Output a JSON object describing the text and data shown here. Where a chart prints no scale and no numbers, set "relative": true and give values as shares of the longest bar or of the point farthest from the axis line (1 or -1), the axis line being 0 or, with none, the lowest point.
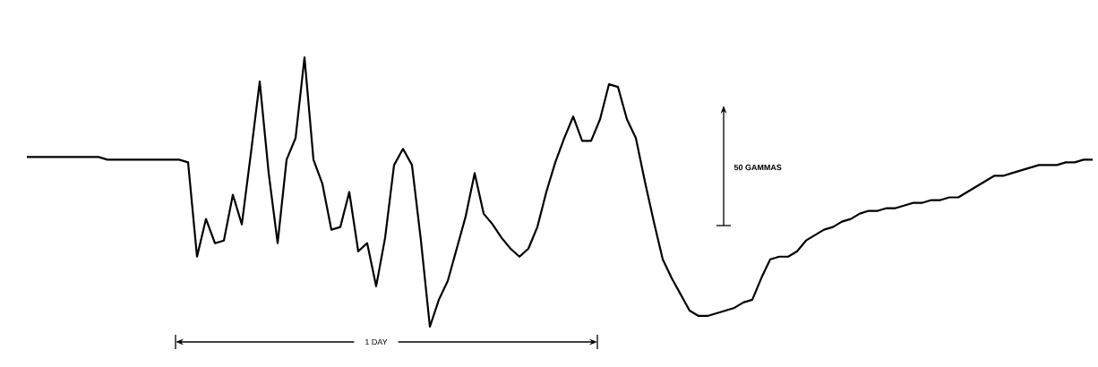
{
  "chart_data": {
    "type": "line",
    "relative": true,
    "color": "#000000",
    "categories": [
      null,
      null,
      null,
      null,
      null,
      null,
      null,
      null,
      null,
      null,
      null,
      null,
      null,
      null,
      null,
      null,
      null,
      null,
      null,
      null,
      null,
      null,
      null,
      null,
      null,
      null,
      null,
      null,
      null,
      null,
      null,
      null,
      null,
      null,
      null,
      null,
      null,
      null,
      null,
      null,
      null,
      null,
      null,
      null,
      null,
      null,
      null,
      null,
      null,
      null,
      null,
      null,
      null,
      null,
      null,
      null,
      null,
      null,
      null,
      null,
      null,
      null,
      null,
      null,
      null,
      null,
      null,
      null,
      null,
      null,
      null,
      null,
      null,
      null,
      null,
      null,
      null,
      null,
      null,
      null,
      null,
      null,
      null,
      null,
      null,
      null,
      null,
      null,
      null,
      null,
      null,
      null,
      null,
      null,
      null,
      null,
      null,
      null,
      null,
      null,
      null,
      null,
      null,
      null,
      null,
      null,
      null,
      null,
      null,
      null,
      null,
      null,
      null,
      null,
      null,
      null,
      null,
      null,
      null,
      null
    ],
    "values": [
      0.63,
      0.63,
      0.63,
      0.63,
      0.63,
      0.63,
      0.63,
      0.63,
      0.63,
      0.62,
      0.62,
      0.62,
      0.62,
      0.62,
      0.62,
      0.62,
      0.62,
      0.62,
      0.61,
      0.26,
      0.4,
      0.31,
      0.32,
      0.49,
      0.38,
      0.64,
      0.91,
      0.57,
      0.31,
      0.62,
      0.7,
      1.0,
      0.62,
      0.53,
      0.36,
      0.37,
      0.5,
      0.28,
      0.31,
      0.15,
      0.33,
      0.6,
      0.66,
      0.6,
      0.32,
      0.0,
      0.1,
      0.17,
      0.29,
      0.41,
      0.57,
      0.42,
      0.38,
      0.33,
      0.29,
      0.26,
      0.29,
      0.37,
      0.5,
      0.61,
      0.7,
      0.78,
      0.69,
      0.69,
      0.77,
      0.9,
      0.89,
      0.77,
      0.7,
      0.54,
      0.39,
      0.25,
      0.18,
      0.12,
      0.06,
      0.04,
      0.04,
      0.05,
      0.06,
      0.07,
      0.09,
      0.1,
      0.18,
      0.25,
      0.26,
      0.26,
      0.28,
      0.32,
      0.34,
      0.36,
      0.37,
      0.39,
      0.4,
      0.42,
      0.43,
      0.43,
      0.44,
      0.44,
      0.45,
      0.46,
      0.46,
      0.47,
      0.47,
      0.48,
      0.48,
      0.5,
      0.52,
      0.54,
      0.56,
      0.56,
      0.57,
      0.58,
      0.59,
      0.6,
      0.6,
      0.6,
      0.61,
      0.61,
      0.62,
      0.62
    ],
    "annotations": [
      "1 DAY",
      "50 GAMMAS"
    ]
  }
}
